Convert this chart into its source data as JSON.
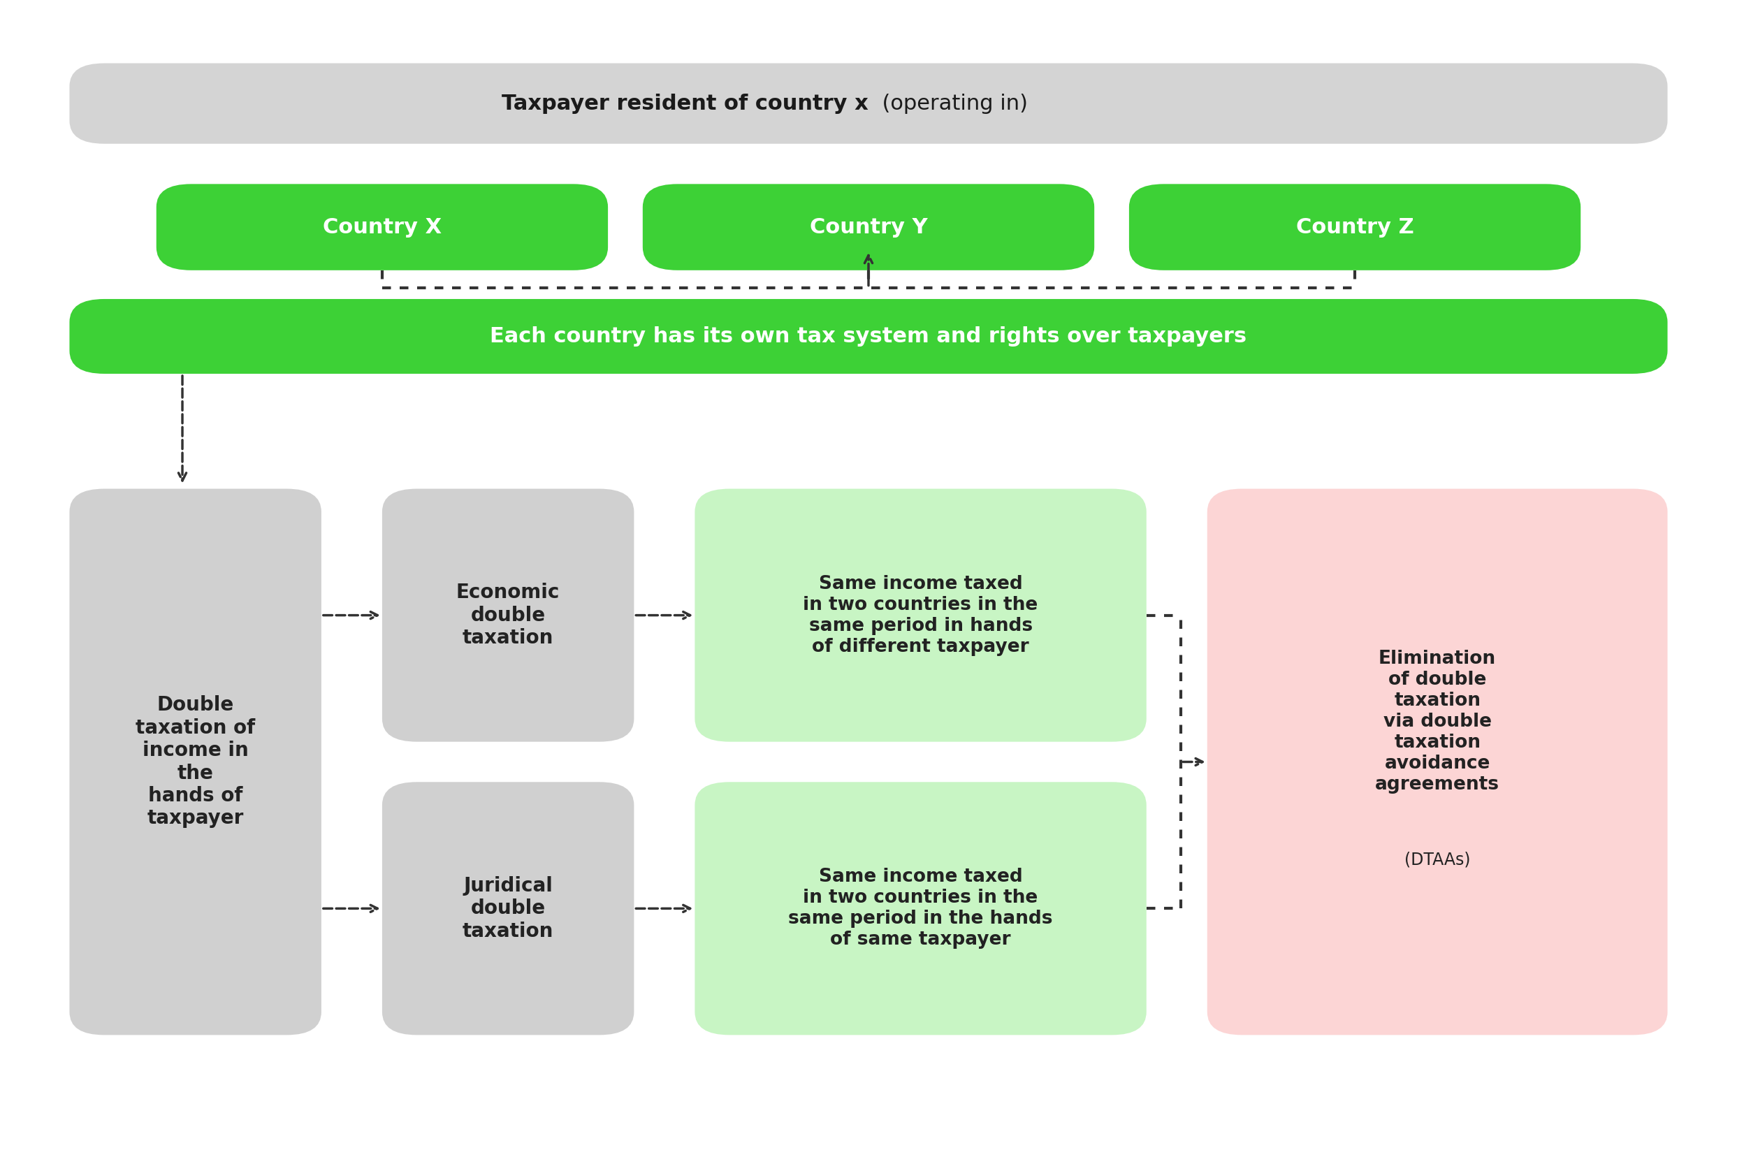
{
  "bg_color": "#ffffff",
  "green": "#3dd136",
  "light_green": "#c8f5c4",
  "light_red": "#fcd5d5",
  "gray_box": "#d0d0d0",
  "dark": "#222222",
  "white": "#ffffff",
  "box_top_text_bold": "Taxpayer resident of country x",
  "box_top_text_normal": "  (operating in)",
  "box_top_color": "#d4d4d4",
  "box_top_text_color": "#1a1a1a",
  "countries": [
    "Country X",
    "Country Y",
    "Country Z"
  ],
  "countries_color": "#3dd136",
  "countries_text_color": "#ffffff",
  "box_each_text": "Each country has its own tax system and rights over taxpayers",
  "box_each_color": "#3dd136",
  "box_each_text_color": "#ffffff",
  "box1_text": "Double\ntaxation of\nincome in\nthe\nhands of\ntaxpayer",
  "box1_color": "#d0d0d0",
  "box1_text_color": "#222222",
  "box2a_text": "Economic\ndouble\ntaxation",
  "box2a_color": "#d0d0d0",
  "box2a_text_color": "#222222",
  "box2b_text": "Juridical\ndouble\ntaxation",
  "box2b_color": "#d0d0d0",
  "box2b_text_color": "#222222",
  "box3a_text": "Same income taxed\nin two countries in the\nsame period in hands\nof different taxpayer",
  "box3a_color": "#c8f5c4",
  "box3a_text_color": "#222222",
  "box3b_text": "Same income taxed\nin two countries in the\nsame period in the hands\nof same taxpayer",
  "box3b_color": "#c8f5c4",
  "box3b_text_color": "#222222",
  "box4_text_main": "Elimination\nof double\ntaxation\nvia double\ntaxation\navoidance\nagreements",
  "box4_text_sub": "(DTAAs)",
  "box4_color": "#fcd5d5",
  "box4_text_color": "#222222",
  "arrow_color": "#333333",
  "arrow_lw": 3.0
}
